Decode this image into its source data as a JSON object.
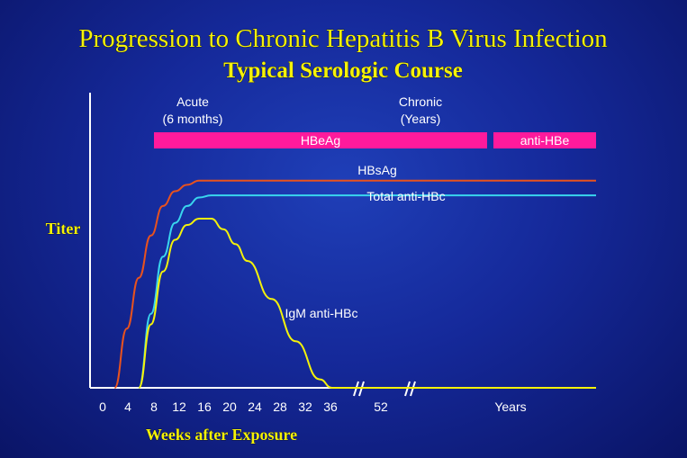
{
  "chart_data": {
    "type": "line",
    "title": "Progression to Chronic Hepatitis B Virus Infection",
    "subtitle": "Typical Serologic Course",
    "ylabel": "Titer",
    "xlabel": "Weeks after Exposure",
    "x_ticks": [
      "0",
      "4",
      "8",
      "12",
      "16",
      "20",
      "24",
      "28",
      "32",
      "36",
      "52",
      "Years"
    ],
    "phases": [
      {
        "name": "Acute",
        "detail": "(6 months)"
      },
      {
        "name": "Chronic",
        "detail": "(Years)"
      }
    ],
    "marker_bars": [
      {
        "label": "HBeAg",
        "color": "#ff1a9c",
        "from_week": 8,
        "until": "chronic"
      },
      {
        "label": "anti-HBe",
        "color": "#ff1a9c",
        "from": "late chronic",
        "until": "end"
      }
    ],
    "series": [
      {
        "name": "HBsAg",
        "color": "#e8521e",
        "x": [
          2,
          4,
          6,
          8,
          10,
          12,
          14,
          16,
          20,
          36,
          "Years"
        ],
        "y": [
          0,
          0.28,
          0.52,
          0.72,
          0.86,
          0.93,
          0.96,
          0.98,
          0.98,
          0.98,
          0.98
        ]
      },
      {
        "name": "Total anti-HBc",
        "color": "#39d6ee",
        "x": [
          6,
          8,
          10,
          12,
          14,
          16,
          18,
          20,
          36,
          "Years"
        ],
        "y": [
          0,
          0.35,
          0.62,
          0.78,
          0.86,
          0.9,
          0.91,
          0.91,
          0.91,
          0.91
        ]
      },
      {
        "name": "IgM anti-HBc",
        "color": "#f4f20a",
        "x": [
          6,
          8,
          10,
          12,
          14,
          16,
          18,
          20,
          22,
          24,
          28,
          32,
          36,
          38,
          "Years"
        ],
        "y": [
          0,
          0.3,
          0.55,
          0.7,
          0.77,
          0.8,
          0.8,
          0.75,
          0.68,
          0.6,
          0.42,
          0.22,
          0.04,
          0,
          0
        ]
      }
    ]
  },
  "colors": {
    "background": "#15299a",
    "title": "#f4f20a",
    "axis": "#ffffff",
    "label": "#ffffff"
  }
}
